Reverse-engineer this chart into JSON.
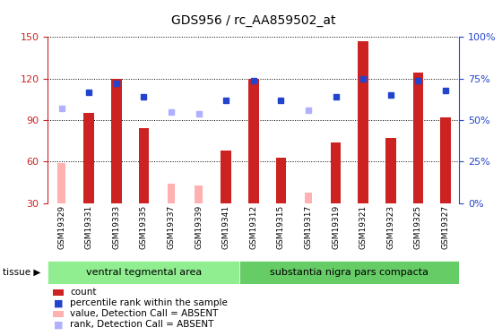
{
  "title": "GDS956 / rc_AA859502_at",
  "samples": [
    "GSM19329",
    "GSM19331",
    "GSM19333",
    "GSM19335",
    "GSM19337",
    "GSM19339",
    "GSM19341",
    "GSM19312",
    "GSM19315",
    "GSM19317",
    "GSM19319",
    "GSM19321",
    "GSM19323",
    "GSM19325",
    "GSM19327"
  ],
  "group1_count": 7,
  "group1_label": "ventral tegmental area",
  "group2_label": "substantia nigra pars compacta",
  "count_values": [
    null,
    95,
    120,
    84,
    null,
    null,
    68,
    120,
    63,
    null,
    74,
    147,
    77,
    124,
    92
  ],
  "count_absent": [
    59,
    null,
    null,
    null,
    44,
    43,
    null,
    null,
    null,
    38,
    null,
    null,
    null,
    null,
    null
  ],
  "rank_values": [
    null,
    67,
    72,
    64,
    null,
    null,
    62,
    74,
    62,
    null,
    64,
    75,
    65,
    74,
    68
  ],
  "rank_absent": [
    57,
    null,
    null,
    null,
    55,
    54,
    null,
    null,
    null,
    56,
    null,
    null,
    null,
    null,
    null
  ],
  "ylim_left": [
    30,
    150
  ],
  "ylim_right": [
    0,
    100
  ],
  "yticks_left": [
    30,
    60,
    90,
    120,
    150
  ],
  "ytick_labels_left": [
    "30",
    "60",
    "90",
    "120",
    "150"
  ],
  "yticks_right": [
    0,
    25,
    50,
    75,
    100
  ],
  "ytick_labels_right": [
    "0%",
    "25%",
    "50%",
    "75%",
    "100%"
  ],
  "bar_color": "#cc2222",
  "absent_bar_color": "#ffb0b0",
  "rank_color": "#2244cc",
  "rank_absent_color": "#b0b0ff",
  "bg_color": "#ffffff",
  "sample_bg": "#cccccc",
  "group1_bg": "#90ee90",
  "group2_bg": "#66cc66",
  "legend": [
    {
      "label": "count",
      "color": "#cc2222",
      "type": "rect"
    },
    {
      "label": "percentile rank within the sample",
      "color": "#2244cc",
      "type": "square"
    },
    {
      "label": "value, Detection Call = ABSENT",
      "color": "#ffb0b0",
      "type": "rect"
    },
    {
      "label": "rank, Detection Call = ABSENT",
      "color": "#b0b0ff",
      "type": "square"
    }
  ]
}
